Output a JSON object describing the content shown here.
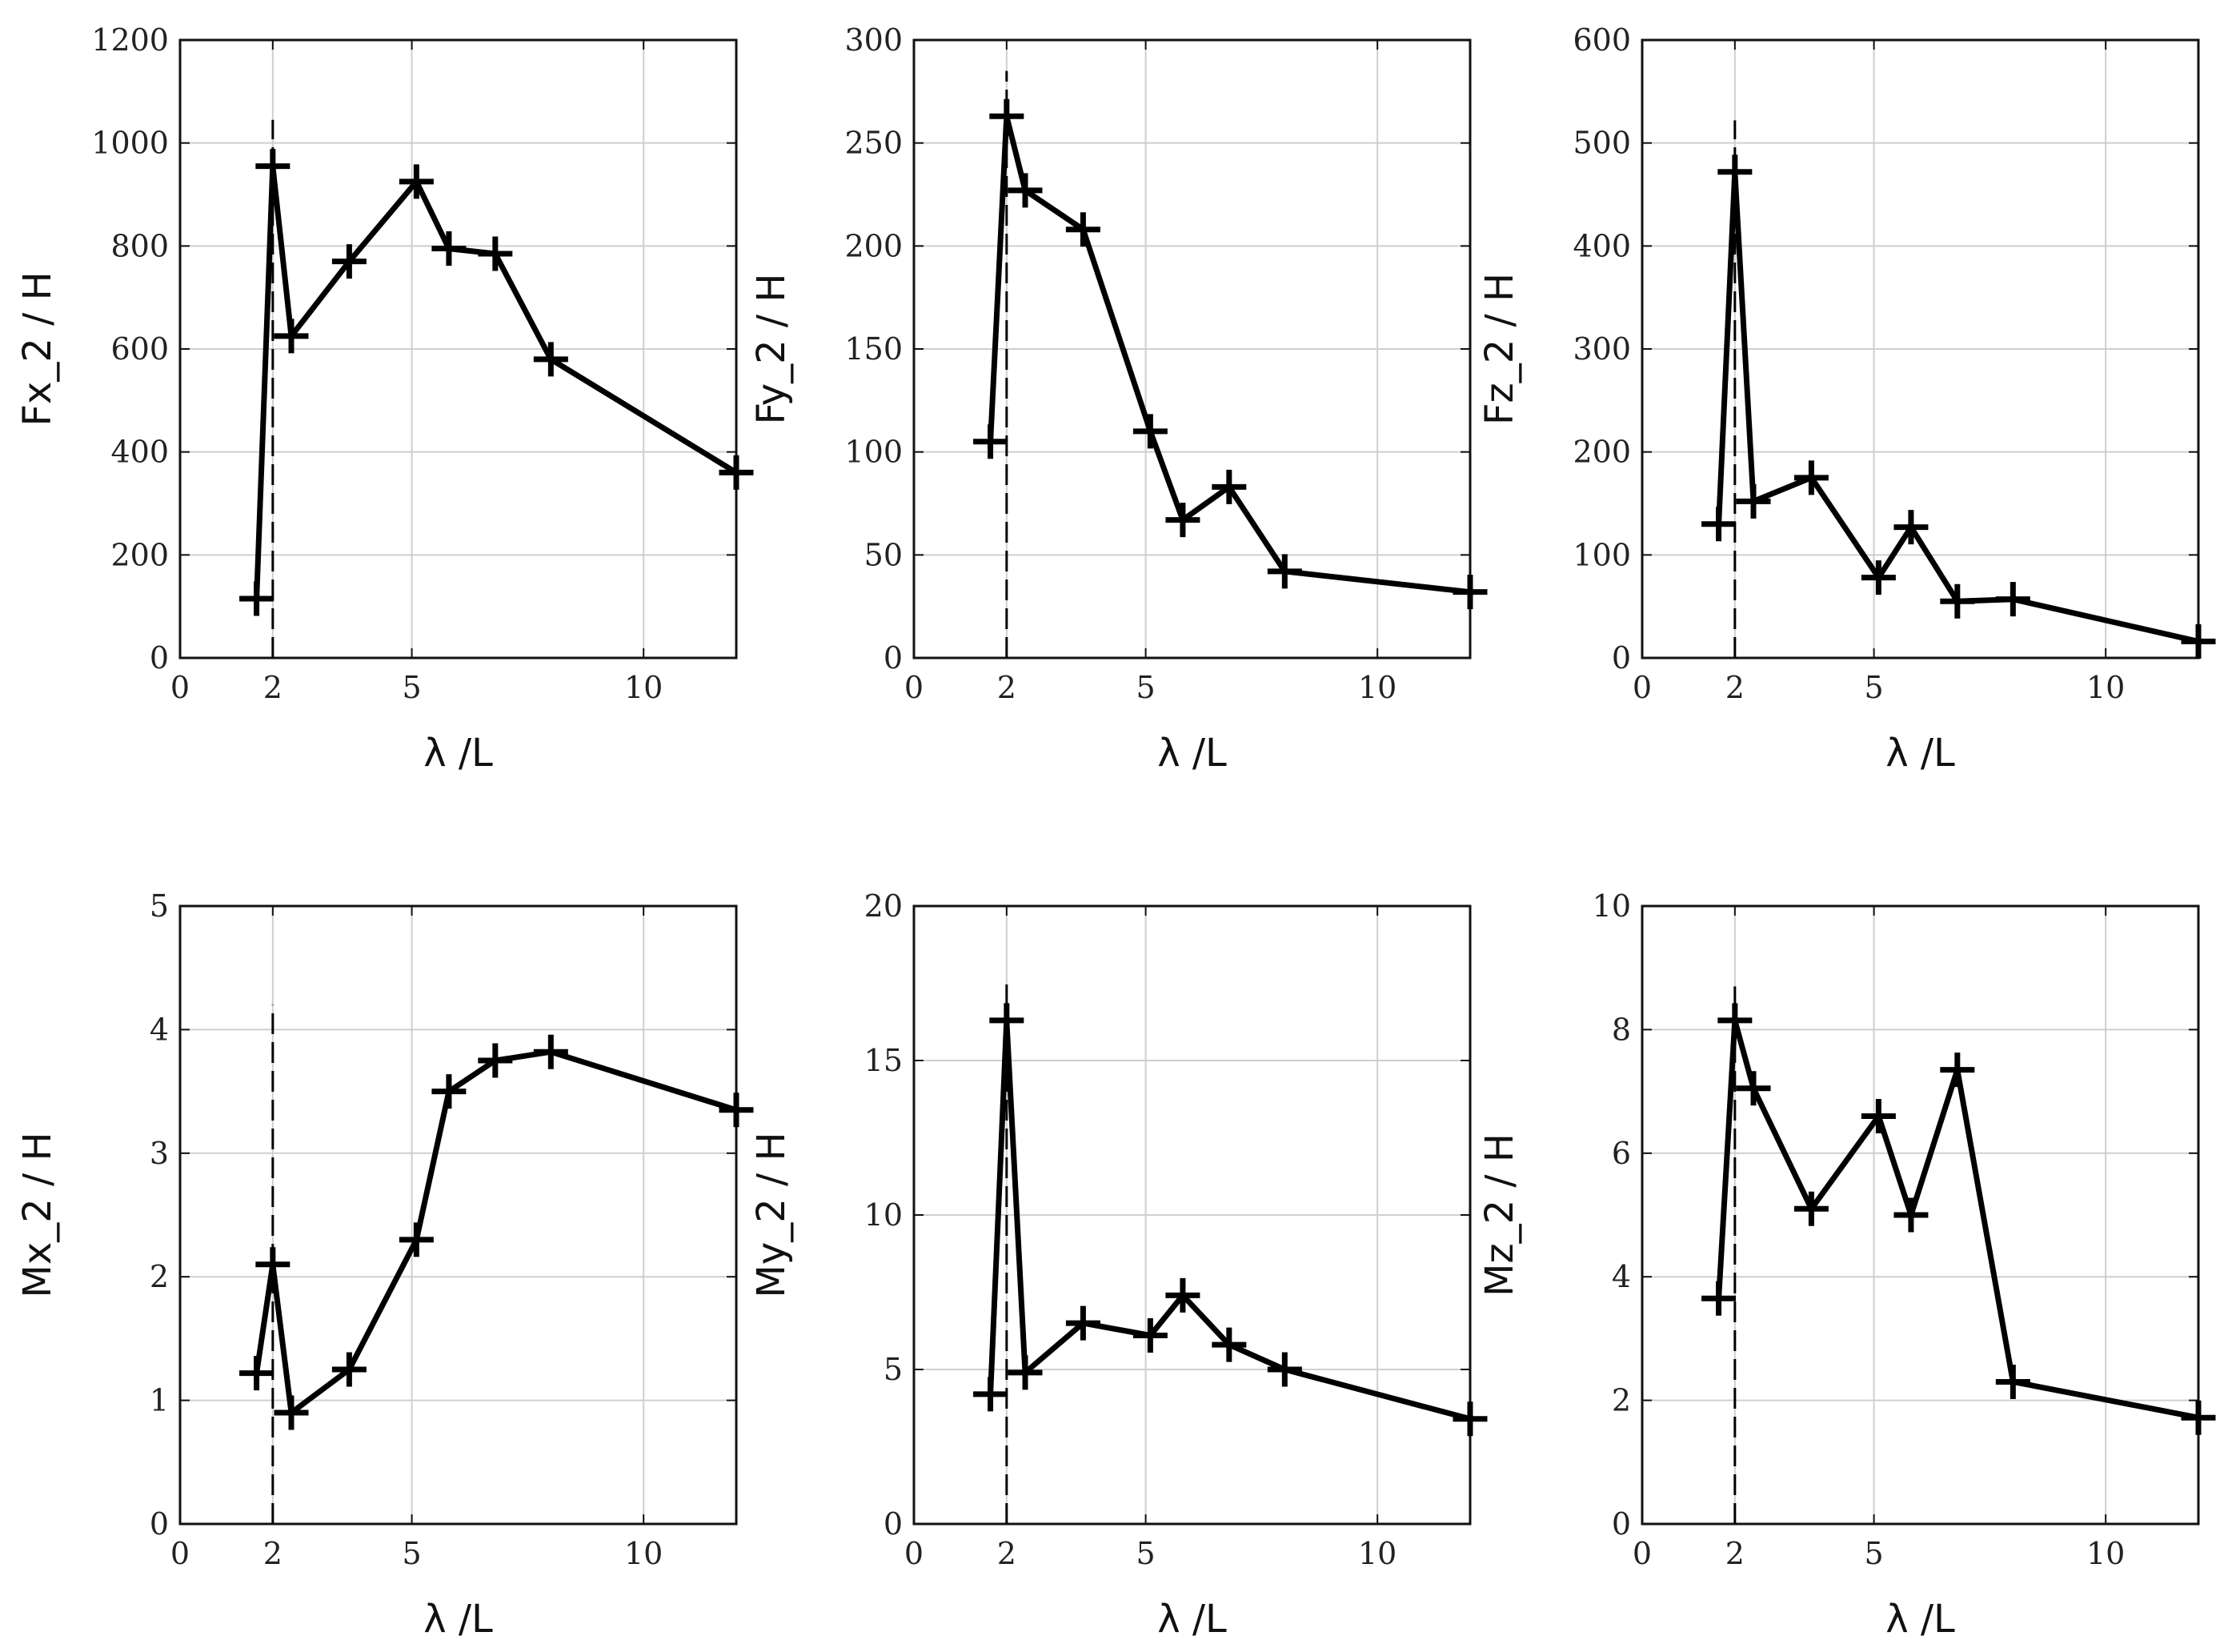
{
  "chart_data": [
    {
      "type": "line",
      "panel": "top-left",
      "xlabel": "λ /L",
      "ylabel": "Fx_2 / H",
      "xlim": [
        0,
        12
      ],
      "ylim": [
        0,
        1200
      ],
      "xticks": [
        0,
        2,
        5,
        10
      ],
      "yticks": [
        0,
        200,
        400,
        600,
        800,
        1000,
        1200
      ],
      "grid": true,
      "marker": "plus",
      "vline": {
        "x": 2,
        "ymax": 1045,
        "style": "dashed"
      },
      "series": [
        {
          "name": "Fx_2",
          "x": [
            1.65,
            2.0,
            2.4,
            3.65,
            5.1,
            5.8,
            6.8,
            8.0,
            12.0
          ],
          "y": [
            115,
            955,
            625,
            770,
            925,
            795,
            785,
            580,
            360
          ]
        }
      ]
    },
    {
      "type": "line",
      "panel": "top-middle",
      "xlabel": "λ /L",
      "ylabel": "Fy_2 / H",
      "xlim": [
        0,
        12
      ],
      "ylim": [
        0,
        300
      ],
      "xticks": [
        0,
        2,
        5,
        10
      ],
      "yticks": [
        0,
        50,
        100,
        150,
        200,
        250,
        300
      ],
      "grid": true,
      "marker": "plus",
      "vline": {
        "x": 2,
        "ymax": 285,
        "style": "dashed"
      },
      "series": [
        {
          "name": "Fy_2",
          "x": [
            1.65,
            2.0,
            2.4,
            3.65,
            5.1,
            5.8,
            6.8,
            8.0,
            12.0
          ],
          "y": [
            105,
            263,
            227,
            208,
            110,
            67,
            83,
            42,
            32
          ]
        }
      ]
    },
    {
      "type": "line",
      "panel": "top-right",
      "xlabel": "λ /L",
      "ylabel": "Fz_2 / H",
      "xlim": [
        0,
        12
      ],
      "ylim": [
        0,
        600
      ],
      "xticks": [
        0,
        2,
        5,
        10
      ],
      "yticks": [
        0,
        100,
        200,
        300,
        400,
        500,
        600
      ],
      "grid": true,
      "marker": "plus",
      "vline": {
        "x": 2,
        "ymax": 522,
        "style": "dashed"
      },
      "series": [
        {
          "name": "Fz_2",
          "x": [
            1.65,
            2.0,
            2.4,
            3.65,
            5.1,
            5.8,
            6.8,
            8.0,
            12.0
          ],
          "y": [
            130,
            472,
            152,
            175,
            78,
            127,
            55,
            57,
            16
          ]
        }
      ]
    },
    {
      "type": "line",
      "panel": "bottom-left",
      "xlabel": "λ /L",
      "ylabel": "Mx_2 / H",
      "xlim": [
        0,
        12
      ],
      "ylim": [
        0,
        5
      ],
      "xticks": [
        0,
        2,
        5,
        10
      ],
      "yticks": [
        0,
        1,
        2,
        3,
        4,
        5
      ],
      "grid": true,
      "marker": "plus",
      "vline": {
        "x": 2,
        "ymax": 4.2,
        "style": "dashed"
      },
      "series": [
        {
          "name": "Mx_2",
          "x": [
            1.65,
            2.0,
            2.4,
            3.65,
            5.1,
            5.8,
            6.8,
            8.0,
            12.0
          ],
          "y": [
            1.22,
            2.1,
            0.9,
            1.25,
            2.3,
            3.5,
            3.75,
            3.82,
            3.35
          ]
        }
      ]
    },
    {
      "type": "line",
      "panel": "bottom-middle",
      "xlabel": "λ /L",
      "ylabel": "My_2 / H",
      "xlim": [
        0,
        12
      ],
      "ylim": [
        0,
        20
      ],
      "xticks": [
        0,
        2,
        5,
        10
      ],
      "yticks": [
        0,
        5,
        10,
        15,
        20
      ],
      "grid": true,
      "marker": "plus",
      "vline": {
        "x": 2,
        "ymax": 17.5,
        "style": "dashed"
      },
      "series": [
        {
          "name": "My_2",
          "x": [
            1.65,
            2.0,
            2.4,
            3.65,
            5.1,
            5.8,
            6.8,
            8.0,
            12.0
          ],
          "y": [
            4.2,
            16.3,
            4.9,
            6.5,
            6.1,
            7.4,
            5.8,
            5.0,
            3.4
          ]
        }
      ]
    },
    {
      "type": "line",
      "panel": "bottom-right",
      "xlabel": "λ /L",
      "ylabel": "Mz_2 / H",
      "xlim": [
        0,
        12
      ],
      "ylim": [
        0,
        10
      ],
      "xticks": [
        0,
        2,
        5,
        10
      ],
      "yticks": [
        0,
        2,
        4,
        6,
        8,
        10
      ],
      "grid": true,
      "marker": "plus",
      "vline": {
        "x": 2,
        "ymax": 8.7,
        "style": "dashed"
      },
      "series": [
        {
          "name": "Mz_2",
          "x": [
            1.65,
            2.0,
            2.4,
            3.65,
            5.1,
            5.8,
            6.8,
            8.0,
            12.0
          ],
          "y": [
            3.65,
            8.15,
            7.05,
            5.1,
            6.6,
            5.0,
            7.35,
            2.3,
            1.72
          ]
        }
      ]
    }
  ]
}
